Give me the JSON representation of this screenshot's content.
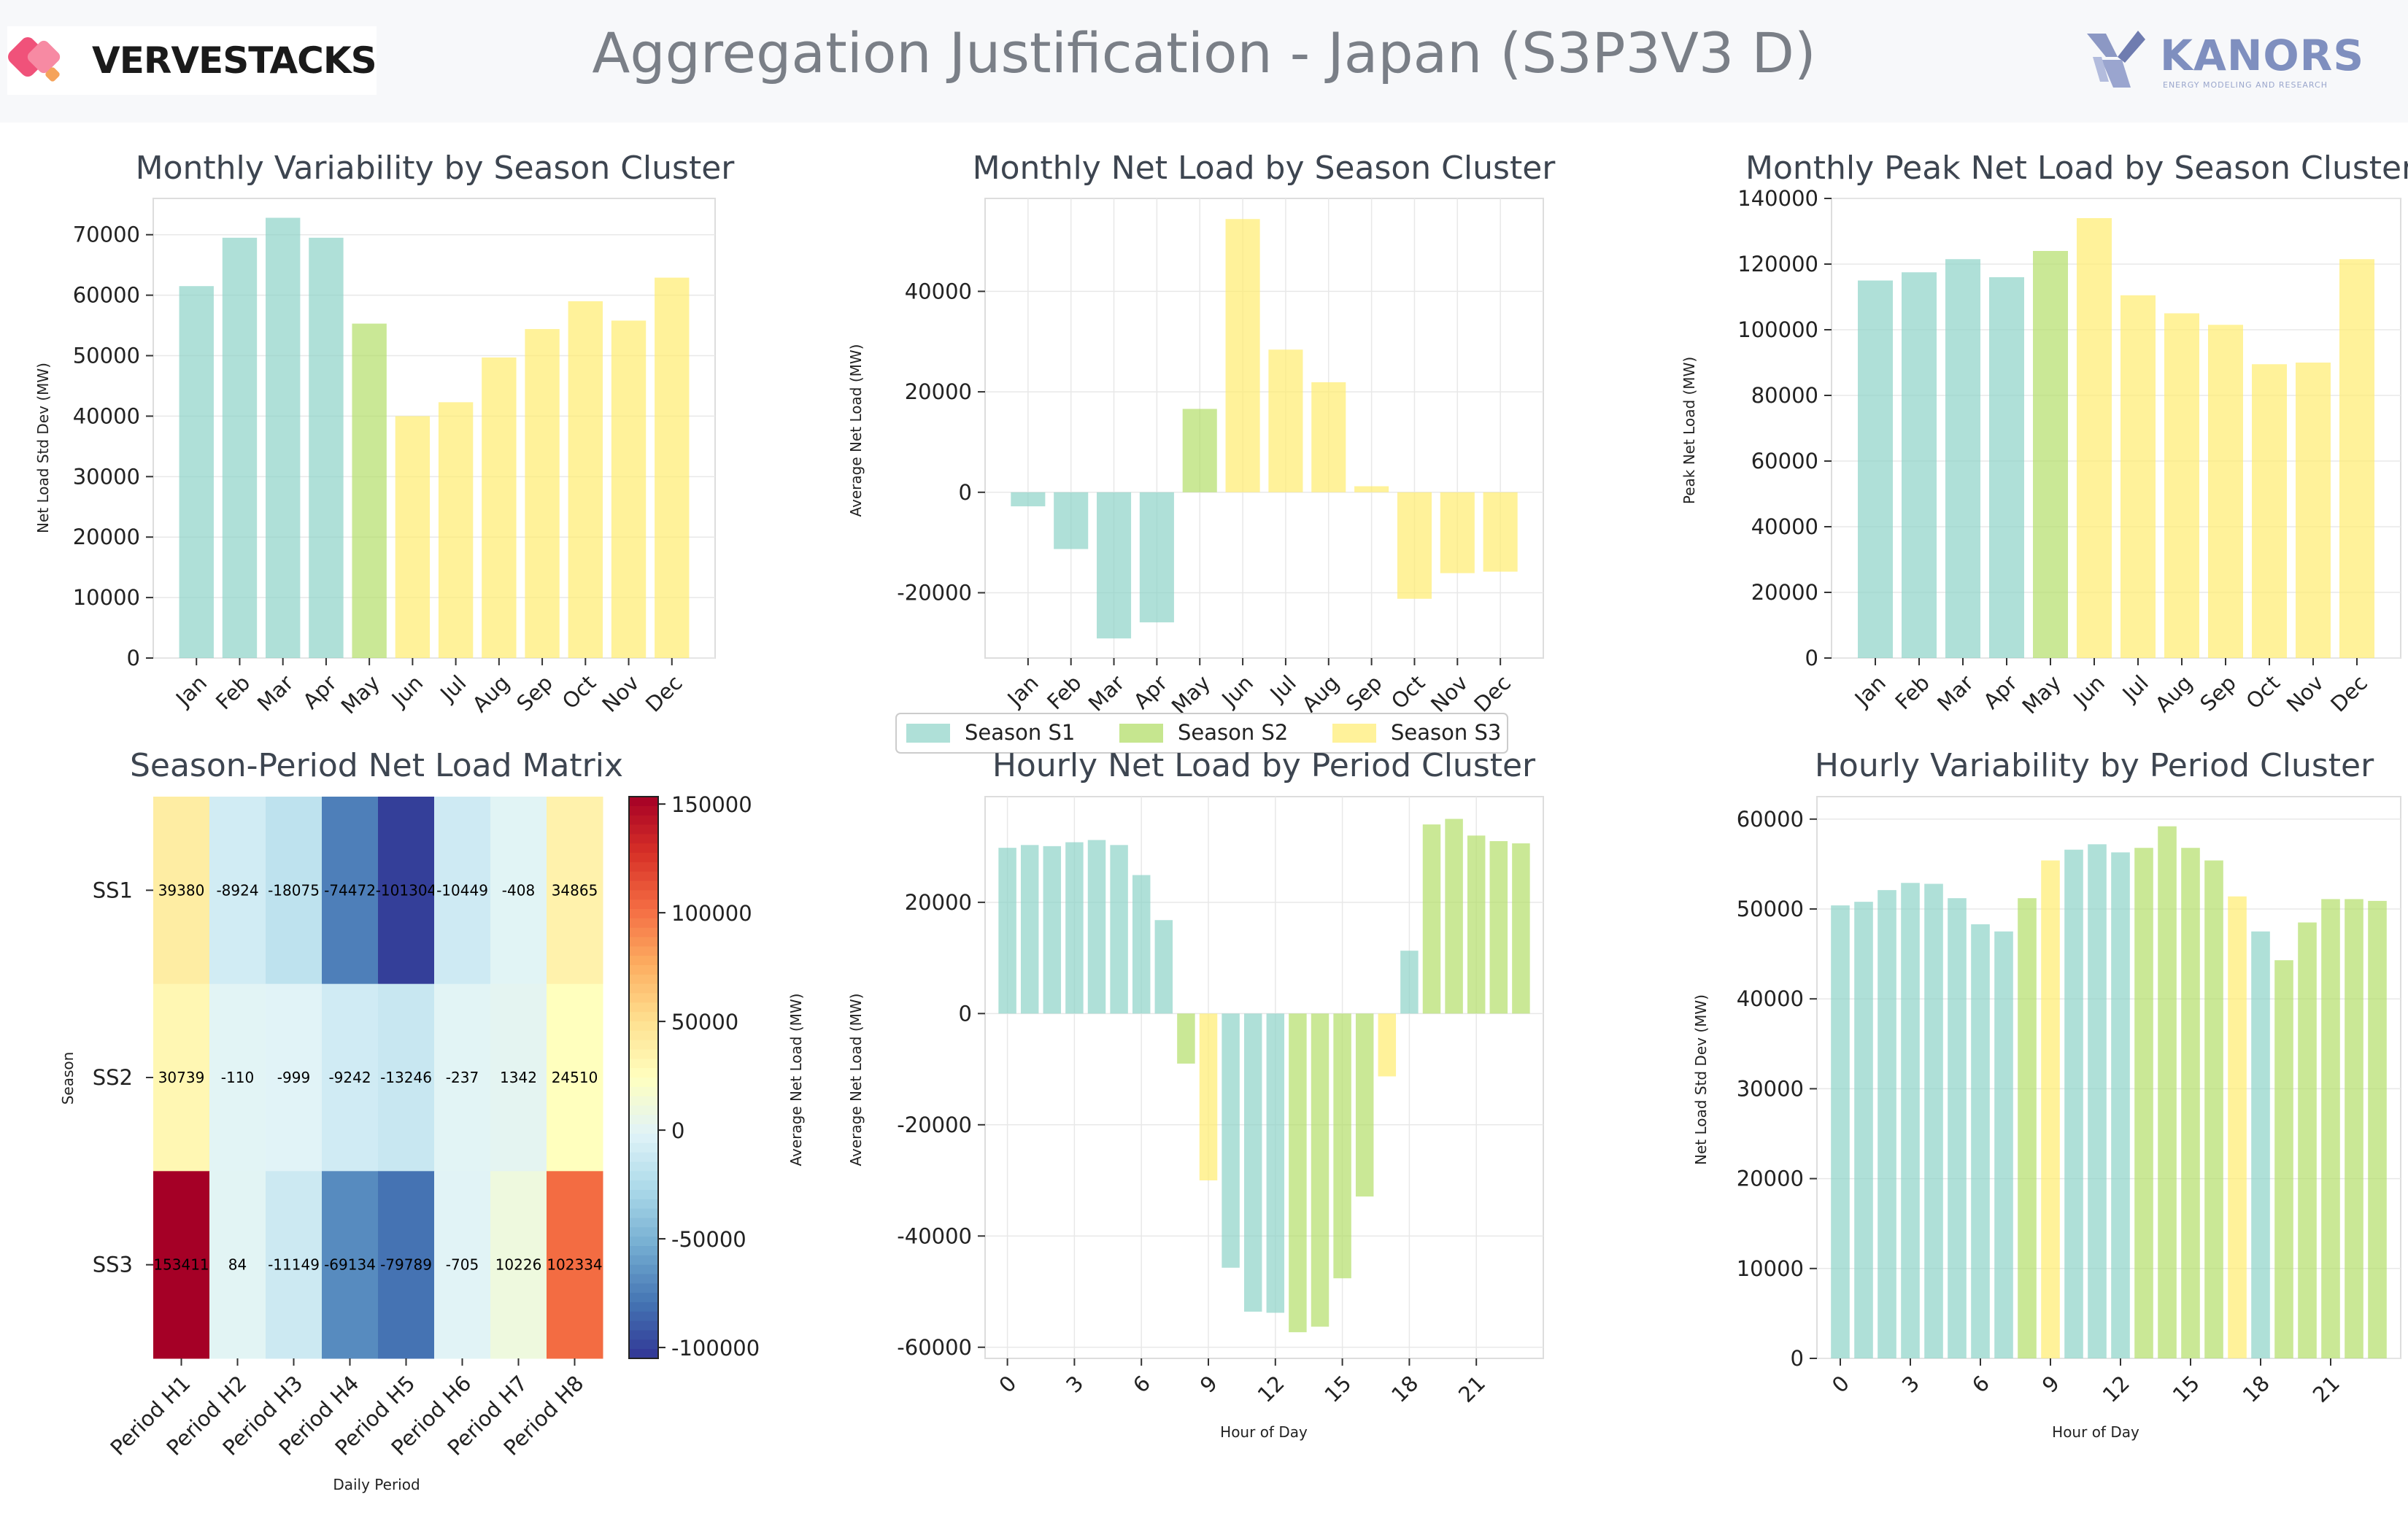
{
  "header": {
    "title": "Aggregation Justification - Japan (S3P3V3 D)",
    "left_logo": {
      "text": "VERVESTACKS"
    },
    "right_logo": {
      "text": "KANORS",
      "subtitle": "ENERGY MODELING AND RESEARCH"
    }
  },
  "colors": {
    "S1": "#8dd3c7",
    "S2": "#b3de69",
    "S3": "#ffed6f",
    "grid": "#e8e8e8",
    "title": "#3d4550"
  },
  "legend": {
    "entries": [
      "Season S1",
      "Season S2",
      "Season S3"
    ]
  },
  "chart_data": [
    {
      "id": "monthly_var",
      "type": "bar",
      "title": "Monthly Variability by Season Cluster",
      "xlabel": "",
      "ylabel": "Net Load Std Dev (MW)",
      "categories": [
        "Jan",
        "Feb",
        "Mar",
        "Apr",
        "May",
        "Jun",
        "Jul",
        "Aug",
        "Sep",
        "Oct",
        "Nov",
        "Dec"
      ],
      "values": [
        61500,
        69500,
        72800,
        69500,
        55300,
        40000,
        42300,
        49700,
        54400,
        59000,
        55800,
        62900
      ],
      "clusters": [
        "S1",
        "S1",
        "S1",
        "S1",
        "S2",
        "S3",
        "S3",
        "S3",
        "S3",
        "S3",
        "S3",
        "S3"
      ],
      "ylim": [
        0,
        76000
      ],
      "yticks": [
        0,
        10000,
        20000,
        30000,
        40000,
        50000,
        60000,
        70000
      ],
      "grid": true
    },
    {
      "id": "monthly_net",
      "type": "bar",
      "title": "Monthly Net Load by Season Cluster",
      "xlabel": "",
      "ylabel": "Average Net Load (MW)",
      "categories": [
        "Jan",
        "Feb",
        "Mar",
        "Apr",
        "May",
        "Jun",
        "Jul",
        "Aug",
        "Sep",
        "Oct",
        "Nov",
        "Dec"
      ],
      "values": [
        -2800,
        -11300,
        -29100,
        -25900,
        16600,
        54400,
        28400,
        21900,
        1200,
        -21200,
        -16100,
        -15800
      ],
      "clusters": [
        "S1",
        "S1",
        "S1",
        "S1",
        "S2",
        "S3",
        "S3",
        "S3",
        "S3",
        "S3",
        "S3",
        "S3"
      ],
      "ylim": [
        -33000,
        58500
      ],
      "yticks": [
        -20000,
        0,
        20000,
        40000
      ],
      "grid": true
    },
    {
      "id": "monthly_peak",
      "type": "bar",
      "title": "Monthly Peak Net Load by Season Cluster",
      "xlabel": "",
      "ylabel": "Peak Net Load (MW)",
      "categories": [
        "Jan",
        "Feb",
        "Mar",
        "Apr",
        "May",
        "Jun",
        "Jul",
        "Aug",
        "Sep",
        "Oct",
        "Nov",
        "Dec"
      ],
      "values": [
        115000,
        117500,
        121500,
        116000,
        124000,
        134000,
        110500,
        105000,
        101500,
        89500,
        90000,
        121500
      ],
      "clusters": [
        "S1",
        "S1",
        "S1",
        "S1",
        "S2",
        "S3",
        "S3",
        "S3",
        "S3",
        "S3",
        "S3",
        "S3"
      ],
      "ylim": [
        0,
        140000
      ],
      "yticks": [
        0,
        20000,
        40000,
        60000,
        80000,
        100000,
        120000,
        140000
      ],
      "grid": true
    },
    {
      "id": "matrix",
      "type": "heatmap",
      "title": "Season-Period Net Load Matrix",
      "xlabel": "Daily Period",
      "ylabel": "Season",
      "colorbar_label": "Average Net Load (MW)",
      "colorbar_ticks": [
        150000,
        100000,
        50000,
        0,
        -50000,
        -100000
      ],
      "vmin": -105000,
      "vmax": 153411,
      "rows": [
        "SS1",
        "SS2",
        "SS3"
      ],
      "columns": [
        "Period H1",
        "Period H2",
        "Period H3",
        "Period H4",
        "Period H5",
        "Period H6",
        "Period H7",
        "Period H8"
      ],
      "values": [
        [
          39380,
          -8924,
          -18075,
          -74472,
          -101304,
          -10449,
          -408,
          34865
        ],
        [
          30739,
          -110,
          -999,
          -9242,
          -13246,
          -237,
          1342,
          24510
        ],
        [
          153411,
          84,
          -11149,
          -69134,
          -79789,
          -705,
          10226,
          102334
        ]
      ]
    },
    {
      "id": "hourly_net",
      "type": "bar",
      "title": "Hourly Net Load by Period Cluster",
      "xlabel": "Hour of Day",
      "ylabel": "Average Net Load (MW)",
      "x": [
        0,
        1,
        2,
        3,
        4,
        5,
        6,
        7,
        8,
        9,
        10,
        11,
        12,
        13,
        14,
        15,
        16,
        17,
        18,
        19,
        20,
        21,
        22,
        23
      ],
      "xticks": [
        0,
        3,
        6,
        9,
        12,
        15,
        18,
        21
      ],
      "values": [
        29800,
        30300,
        30100,
        30800,
        31200,
        30300,
        24900,
        16800,
        -9000,
        -30000,
        -45700,
        -53600,
        -53800,
        -57300,
        -56300,
        -47600,
        -32900,
        -11300,
        11300,
        34000,
        35000,
        32000,
        31000,
        30600
      ],
      "clusters": [
        "S1",
        "S1",
        "S1",
        "S1",
        "S1",
        "S1",
        "S1",
        "S1",
        "S2",
        "S3",
        "S1",
        "S1",
        "S1",
        "S2",
        "S2",
        "S2",
        "S2",
        "S3",
        "S1",
        "S2",
        "S2",
        "S2",
        "S2",
        "S2"
      ],
      "ylim": [
        -62000,
        39000
      ],
      "yticks": [
        -60000,
        -40000,
        -20000,
        0,
        20000
      ],
      "grid": true
    },
    {
      "id": "hourly_var",
      "type": "bar",
      "title": "Hourly Variability by Period Cluster",
      "xlabel": "Hour of Day",
      "ylabel": "Net Load Std Dev (MW)",
      "x": [
        0,
        1,
        2,
        3,
        4,
        5,
        6,
        7,
        8,
        9,
        10,
        11,
        12,
        13,
        14,
        15,
        16,
        17,
        18,
        19,
        20,
        21,
        22,
        23
      ],
      "xticks": [
        0,
        3,
        6,
        9,
        12,
        15,
        18,
        21
      ],
      "values": [
        50400,
        50800,
        52100,
        52900,
        52800,
        51200,
        48300,
        47500,
        51200,
        55400,
        56600,
        57200,
        56300,
        56800,
        59200,
        56800,
        55400,
        51400,
        47500,
        44300,
        48500,
        51100,
        51100,
        50900
      ],
      "clusters": [
        "S1",
        "S1",
        "S1",
        "S1",
        "S1",
        "S1",
        "S1",
        "S1",
        "S2",
        "S3",
        "S1",
        "S1",
        "S1",
        "S2",
        "S2",
        "S2",
        "S2",
        "S3",
        "S1",
        "S2",
        "S2",
        "S2",
        "S2",
        "S2"
      ],
      "ylim": [
        0,
        62500
      ],
      "yticks": [
        0,
        10000,
        20000,
        30000,
        40000,
        50000,
        60000
      ],
      "grid": true
    }
  ]
}
